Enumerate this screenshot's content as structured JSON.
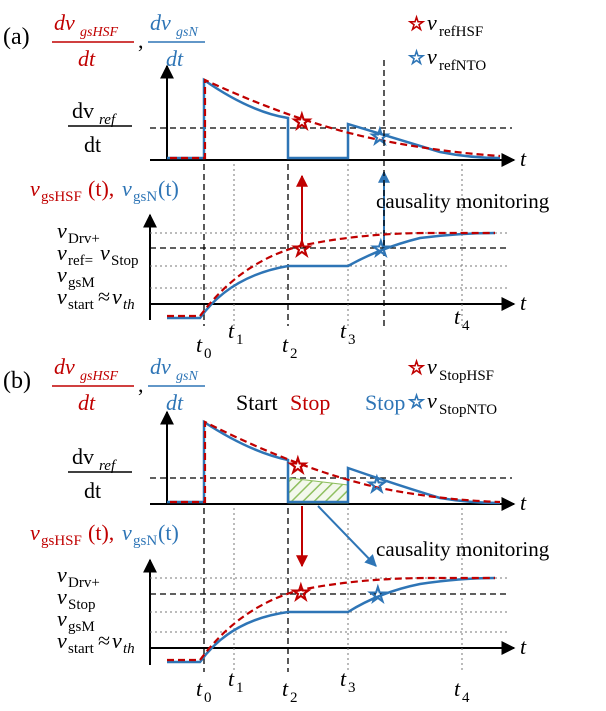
{
  "colors": {
    "hsf": "#c00000",
    "nto": "#2e75b6",
    "axis": "#000000"
  },
  "panel_a": {
    "tag": "(a)",
    "title_hsf_num": "dv",
    "title_hsf_sub": "gsHSF",
    "title_den": "dt",
    "title_sep": ",",
    "title_nto_num": "dv",
    "title_nto_sub": "gsN",
    "legend_hsf_v": "v",
    "legend_hsf_sub": "refHSF",
    "legend_nto_v": "v",
    "legend_nto_sub": "refNTO",
    "ylabel_top_num": "dv",
    "ylabel_top_sub": "ref",
    "ylabel_top_den": "dt",
    "axis_t": "t",
    "ylabel_bottom_hsf": "v",
    "ylabel_bottom_hsf_sub": "gsHSF",
    "ylabel_bottom_hsf_arg": "(t),",
    "ylabel_bottom_nto": "v",
    "ylabel_bottom_nto_sub": "gsN",
    "ylabel_bottom_nto_arg": "(t)",
    "causality": "causality monitoring",
    "lvl_drv": "v",
    "lvl_drv_sub": "Drv+",
    "lvl_ref": "v",
    "lvl_ref_sub": "ref=",
    "lvl_ref_v2": "v",
    "lvl_ref_sub2": "Stop",
    "lvl_gsm": "v",
    "lvl_gsm_sub": "gsM",
    "lvl_start": "v",
    "lvl_start_sub": "start",
    "lvl_approx": "≈",
    "lvl_th": "v",
    "lvl_th_sub": "th",
    "ticks": [
      {
        "t": "t",
        "s": "0"
      },
      {
        "t": "t",
        "s": "1"
      },
      {
        "t": "t",
        "s": "2"
      },
      {
        "t": "t",
        "s": "3"
      },
      {
        "t": "t",
        "s": "4"
      }
    ]
  },
  "panel_b": {
    "tag": "(b)",
    "title_hsf_num": "dv",
    "title_hsf_sub": "gsHSF",
    "title_den": "dt",
    "title_sep": ",",
    "title_nto_num": "dv",
    "title_nto_sub": "gsN",
    "legend_hsf_v": "v",
    "legend_hsf_sub": "StopHSF",
    "legend_nto_v": "v",
    "legend_nto_sub": "StopNTO",
    "label_start": "Start",
    "label_stop_red": "Stop",
    "label_stop_blue": "Stop",
    "ylabel_top_num": "dv",
    "ylabel_top_sub": "ref",
    "ylabel_top_den": "dt",
    "axis_t": "t",
    "ylabel_bottom_hsf": "v",
    "ylabel_bottom_hsf_sub": "gsHSF",
    "ylabel_bottom_hsf_arg": "(t),",
    "ylabel_bottom_nto": "v",
    "ylabel_bottom_nto_sub": "gsN",
    "ylabel_bottom_nto_arg": "(t)",
    "causality": "causality monitoring",
    "lvl_drv": "v",
    "lvl_drv_sub": "Drv+",
    "lvl_stop": "v",
    "lvl_stop_sub": "Stop",
    "lvl_gsm": "v",
    "lvl_gsm_sub": "gsM",
    "lvl_start": "v",
    "lvl_start_sub": "start",
    "lvl_approx": "≈",
    "lvl_th": "v",
    "lvl_th_sub": "th",
    "ticks": [
      {
        "t": "t",
        "s": "0"
      },
      {
        "t": "t",
        "s": "1"
      },
      {
        "t": "t",
        "s": "2"
      },
      {
        "t": "t",
        "s": "3"
      },
      {
        "t": "t",
        "s": "4"
      }
    ]
  }
}
